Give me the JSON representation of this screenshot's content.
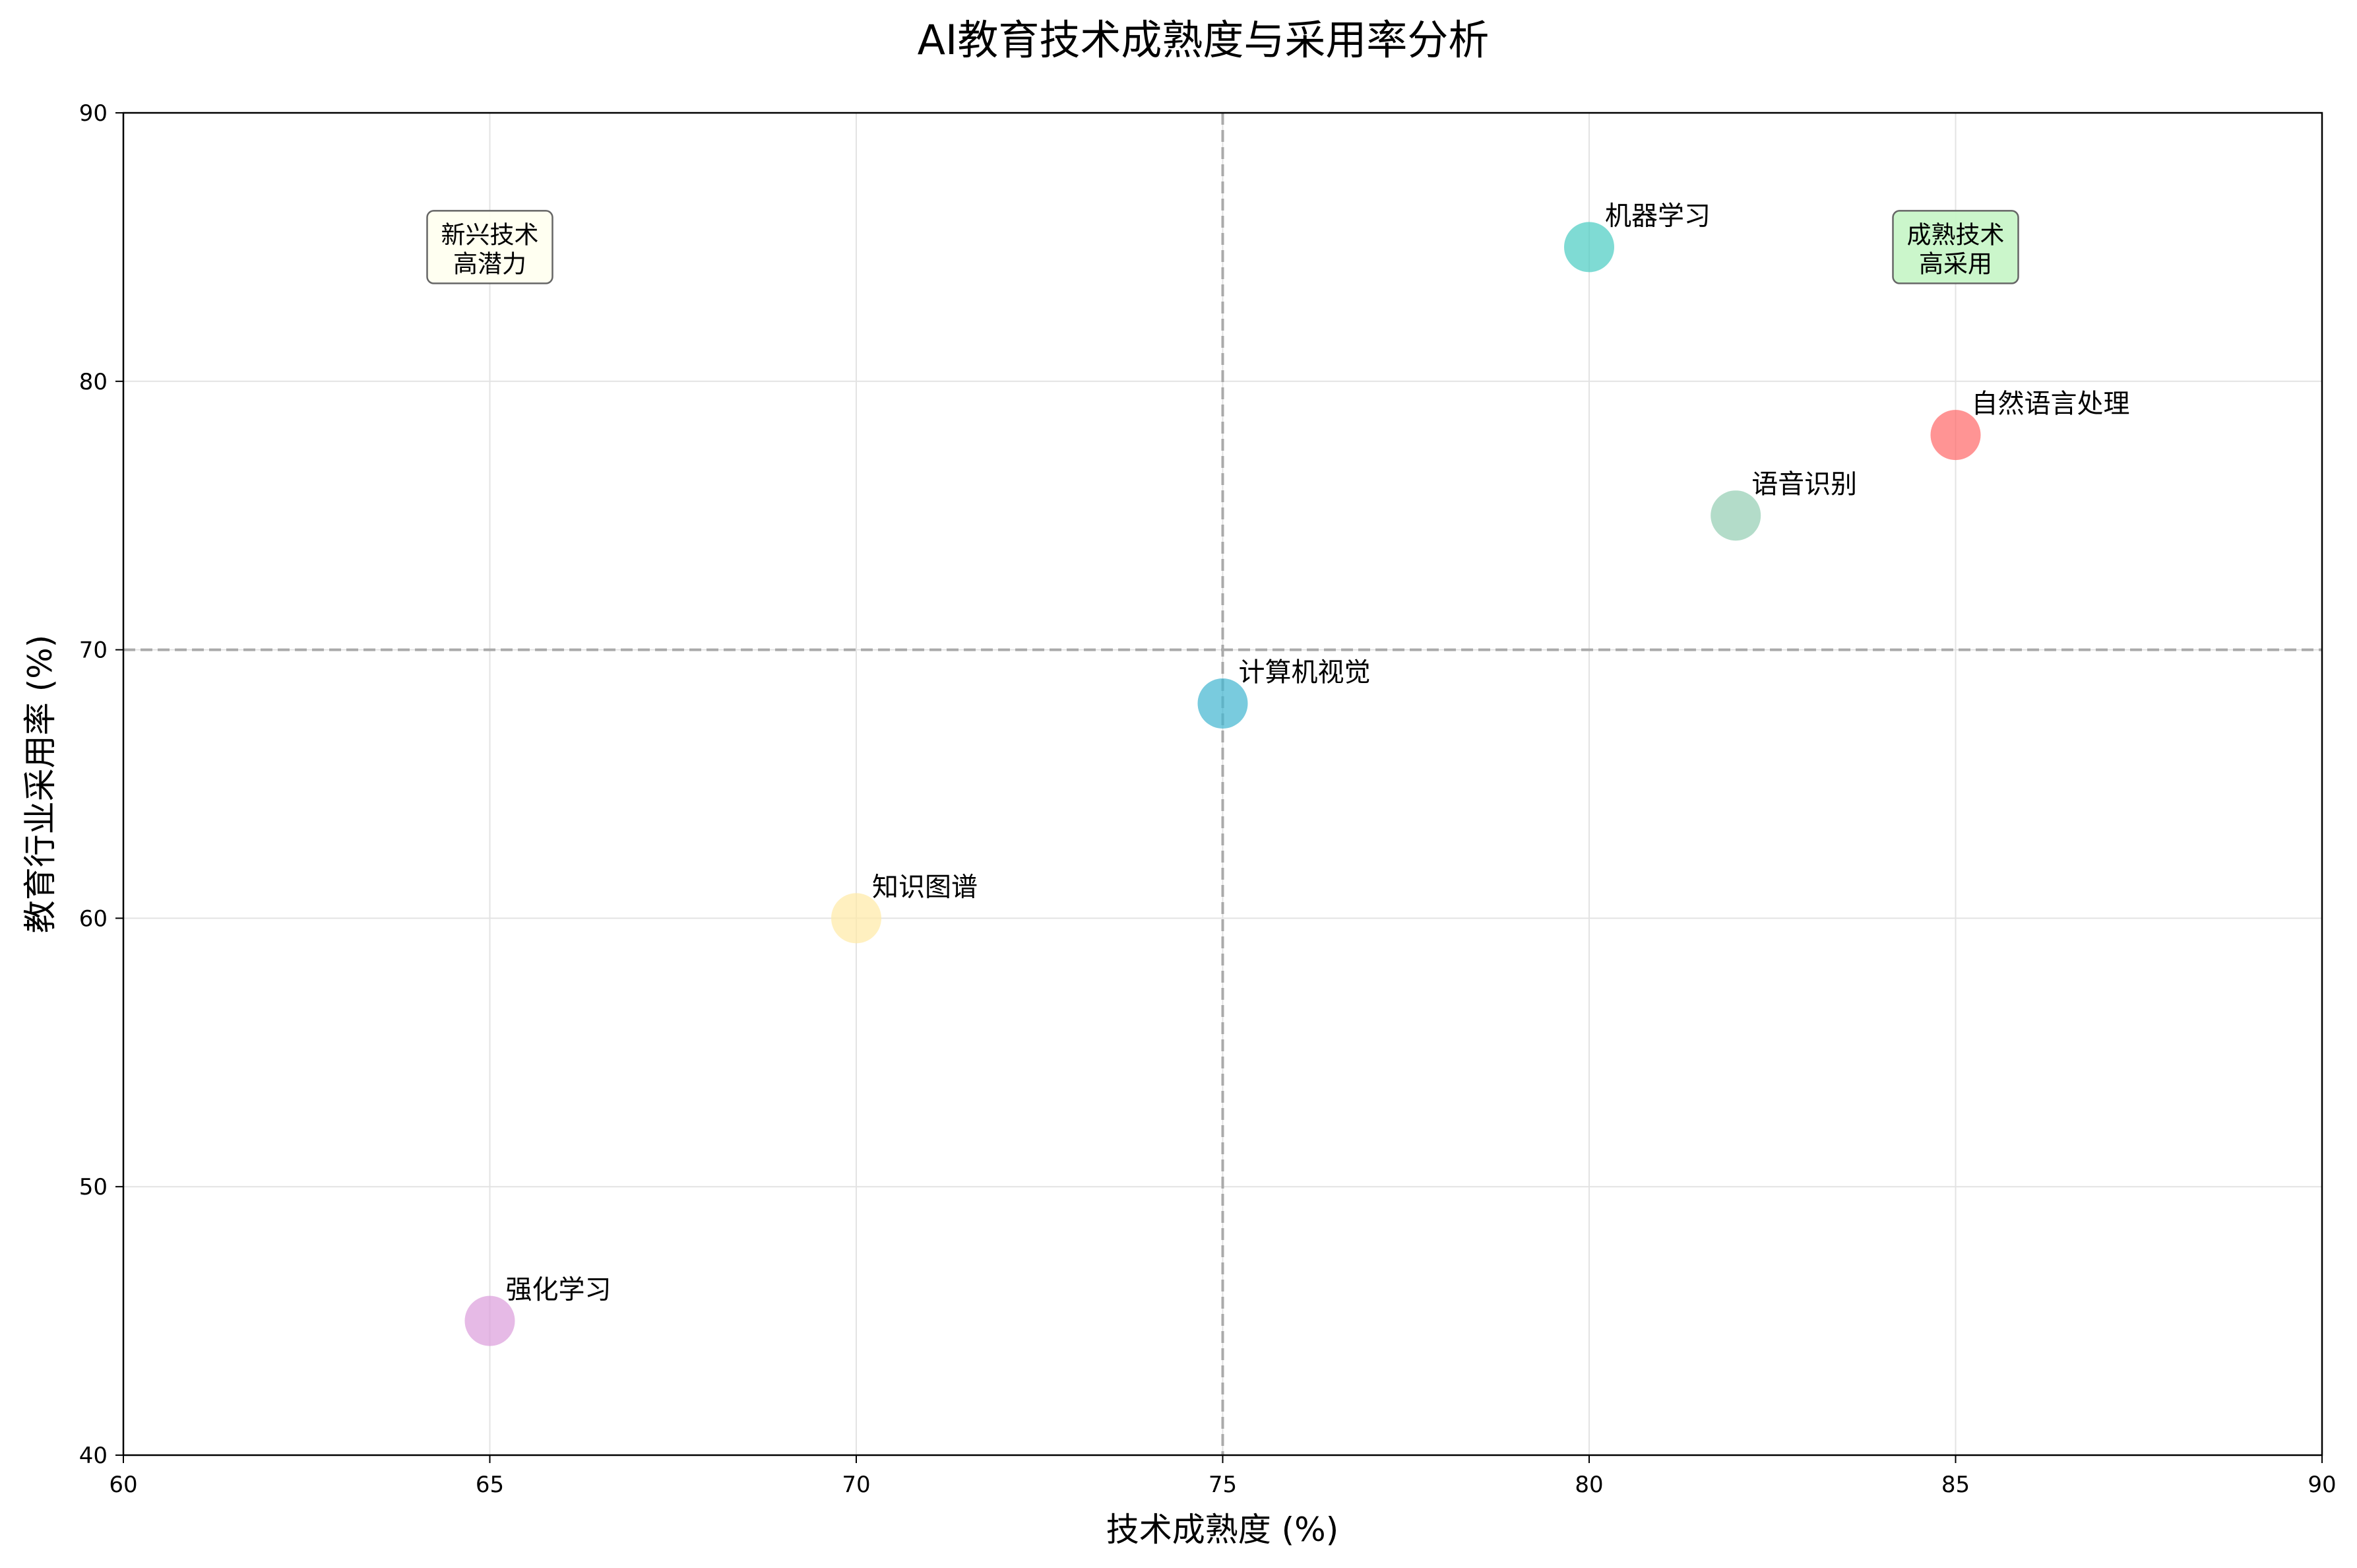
{
  "chart_data": {
    "type": "scatter",
    "title": "AI教育技术成熟度与采用率分析",
    "xlabel": "技术成熟度 (%)",
    "ylabel": "教育行业采用率 (%)",
    "xlim": [
      60,
      90
    ],
    "ylim": [
      40,
      90
    ],
    "xticks": [
      60,
      65,
      70,
      75,
      80,
      85,
      90
    ],
    "yticks": [
      40,
      50,
      60,
      70,
      80,
      90
    ],
    "grid": true,
    "reference_lines": {
      "x": 75,
      "y": 70
    },
    "points": [
      {
        "label": "自然语言处理",
        "x": 85,
        "y": 78,
        "color": "#FF6B6B"
      },
      {
        "label": "机器学习",
        "x": 80,
        "y": 85,
        "color": "#4ECDC4"
      },
      {
        "label": "计算机视觉",
        "x": 75,
        "y": 68,
        "color": "#45B7D1"
      },
      {
        "label": "语音识别",
        "x": 82,
        "y": 75,
        "color": "#96CEB4"
      },
      {
        "label": "知识图谱",
        "x": 70,
        "y": 60,
        "color": "#FFEAA7"
      },
      {
        "label": "强化学习",
        "x": 65,
        "y": 45,
        "color": "#DDA0DD"
      }
    ],
    "annotations": [
      {
        "lines": [
          "成熟技术",
          "高采用"
        ],
        "x": 85,
        "y": 85,
        "bg": "#C8F5C8"
      },
      {
        "lines": [
          "新兴技术",
          "高潜力"
        ],
        "x": 65,
        "y": 85,
        "bg": "#FFFFF0"
      }
    ]
  }
}
